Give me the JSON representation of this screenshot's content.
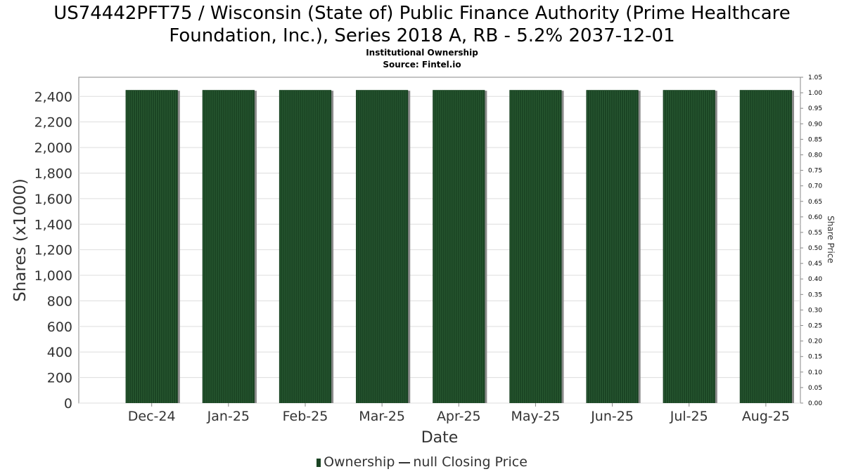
{
  "header": {
    "title_line1": "US74442PFT75 / Wisconsin (State of) Public Finance Authority (Prime Healthcare",
    "title_line2": "Foundation, Inc.), Series 2018 A, RB - 5.2% 2037-12-01",
    "subtitle_line1": "Institutional Ownership",
    "subtitle_line2": "Source: Fintel.io"
  },
  "legend": {
    "ownership_label": "Ownership",
    "price_label": "null Closing Price"
  },
  "colors": {
    "bar": "#1a4423",
    "bar_stripe": "#2b5c34",
    "bar_shadow": "#8a8a8a",
    "grid": "#dddddd",
    "axis": "#888888"
  },
  "chart_data": {
    "type": "bar",
    "title": "US74442PFT75 / Wisconsin (State of) Public Finance Authority (Prime Healthcare Foundation, Inc.), Series 2018 A, RB - 5.2% 2037-12-01",
    "subtitle": "Institutional Ownership",
    "xlabel": "Date",
    "ylabel": "Shares (x1000)",
    "y2label": "Share Price",
    "categories": [
      "Dec-24",
      "Jan-25",
      "Feb-25",
      "Mar-25",
      "Apr-25",
      "May-25",
      "Jun-25",
      "Jul-25",
      "Aug-25"
    ],
    "series": [
      {
        "name": "Ownership",
        "values": [
          2450,
          2450,
          2450,
          2450,
          2450,
          2450,
          2450,
          2450,
          2450
        ]
      }
    ],
    "ylim": [
      0,
      2550
    ],
    "yticks": [
      0,
      200,
      400,
      600,
      800,
      1000,
      1200,
      1400,
      1600,
      1800,
      2000,
      2200,
      2400
    ],
    "ytick_labels": [
      "0",
      "200",
      "400",
      "600",
      "800",
      "1,000",
      "1,200",
      "1,400",
      "1,600",
      "1,800",
      "2,000",
      "2,200",
      "2,400"
    ],
    "y2lim": [
      0,
      1.05
    ],
    "y2ticks": [
      "0.00",
      "0.05",
      "0.10",
      "0.15",
      "0.20",
      "0.25",
      "0.30",
      "0.35",
      "0.40",
      "0.45",
      "0.50",
      "0.55",
      "0.60",
      "0.65",
      "0.70",
      "0.75",
      "0.80",
      "0.85",
      "0.90",
      "0.95",
      "1.00",
      "1.05"
    ],
    "grid": true,
    "legend_position": "bottom"
  }
}
